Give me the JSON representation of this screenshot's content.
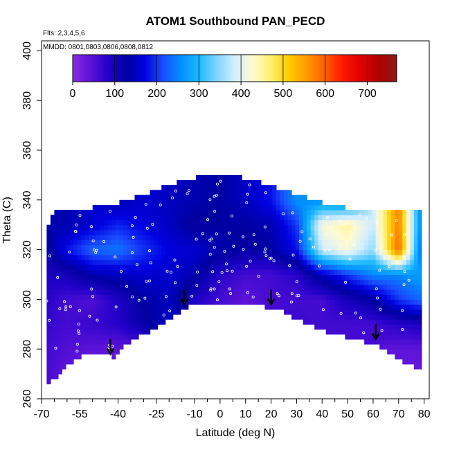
{
  "chart_data": {
    "type": "heatmap",
    "title": "ATOM1 Southbound PAN_PECD",
    "annotations": [
      "Flts: 2,3,4,5,6",
      "MMDD: 0801,0803,0806,0808,0812"
    ],
    "xlabel": "Latitude (deg N)",
    "ylabel": "Theta (C)",
    "xlim": [
      -70,
      82
    ],
    "ylim": [
      260,
      404
    ],
    "x_ticks": [
      -70,
      -55,
      -40,
      -25,
      -10,
      0,
      10,
      20,
      30,
      40,
      50,
      60,
      70,
      80
    ],
    "x_minor_ticks": [
      -65,
      -60,
      -50,
      -45,
      -35,
      -30,
      -20,
      -15,
      -5,
      5,
      15,
      25,
      35,
      45,
      55,
      65,
      75
    ],
    "y_ticks": [
      260,
      280,
      300,
      320,
      340,
      360,
      380,
      400
    ],
    "grid": false,
    "colorbar": {
      "placement": "top-inside",
      "min": 0,
      "max": 770,
      "ticks": [
        0,
        100,
        200,
        300,
        400,
        500,
        600,
        700
      ],
      "colors": [
        "#8a2be2",
        "#5b12d8",
        "#2000c8",
        "#0000a0",
        "#0000e0",
        "#1a4cff",
        "#0090ff",
        "#1ab8ff",
        "#7fd4ff",
        "#d4eeff",
        "#fffbd0",
        "#ffef70",
        "#ffcc00",
        "#ff9a00",
        "#ff6000",
        "#ff1800",
        "#e00000",
        "#b00000",
        "#8b1a1a"
      ]
    },
    "field": {
      "lat": [
        -68,
        -60,
        -50,
        -40,
        -30,
        -20,
        -10,
        0,
        10,
        20,
        30,
        40,
        50,
        60,
        70,
        78
      ],
      "theta": [
        270,
        280,
        290,
        300,
        310,
        320,
        330,
        340
      ],
      "values": [
        [
          60,
          40,
          30,
          null,
          null,
          null,
          null,
          null,
          null,
          null,
          null,
          null,
          null,
          null,
          null,
          30
        ],
        [
          60,
          50,
          40,
          40,
          40,
          null,
          null,
          null,
          null,
          null,
          null,
          null,
          null,
          null,
          40,
          40
        ],
        [
          70,
          60,
          70,
          80,
          120,
          150,
          null,
          null,
          null,
          null,
          70,
          60,
          60,
          60,
          80,
          90
        ],
        [
          80,
          60,
          50,
          90,
          130,
          150,
          90,
          60,
          40,
          60,
          60,
          60,
          100,
          130,
          200,
          230
        ],
        [
          90,
          100,
          140,
          150,
          160,
          160,
          140,
          80,
          60,
          60,
          80,
          150,
          200,
          250,
          250,
          270
        ],
        [
          120,
          180,
          230,
          240,
          200,
          170,
          160,
          140,
          120,
          130,
          180,
          380,
          420,
          350,
          600,
          250
        ],
        [
          null,
          140,
          160,
          190,
          170,
          150,
          120,
          130,
          130,
          140,
          200,
          420,
          450,
          380,
          580,
          270
        ],
        [
          null,
          null,
          null,
          140,
          160,
          150,
          140,
          130,
          150,
          180,
          260,
          250,
          230,
          null,
          null,
          null
        ]
      ]
    },
    "floor_theta": {
      "lat": [
        -68,
        -65,
        -60,
        -56,
        -52,
        -48,
        -45,
        -42,
        -38,
        -33,
        -28,
        -23,
        -18,
        -13,
        -8,
        -3,
        2,
        7,
        12,
        17,
        22,
        27,
        32,
        37,
        42,
        47,
        52,
        57,
        62,
        67,
        72,
        78
      ],
      "theta": [
        266,
        269,
        275,
        277,
        279,
        278,
        280,
        277,
        282,
        285,
        288,
        291,
        294,
        298,
        300,
        299,
        298,
        300,
        299,
        298,
        297,
        295,
        292,
        290,
        288,
        287,
        285,
        284,
        282,
        279,
        276,
        273
      ]
    },
    "arrows_lat": [
      -43,
      -14,
      20,
      61
    ],
    "arrows_theta": [
      278,
      298,
      298,
      284
    ]
  }
}
